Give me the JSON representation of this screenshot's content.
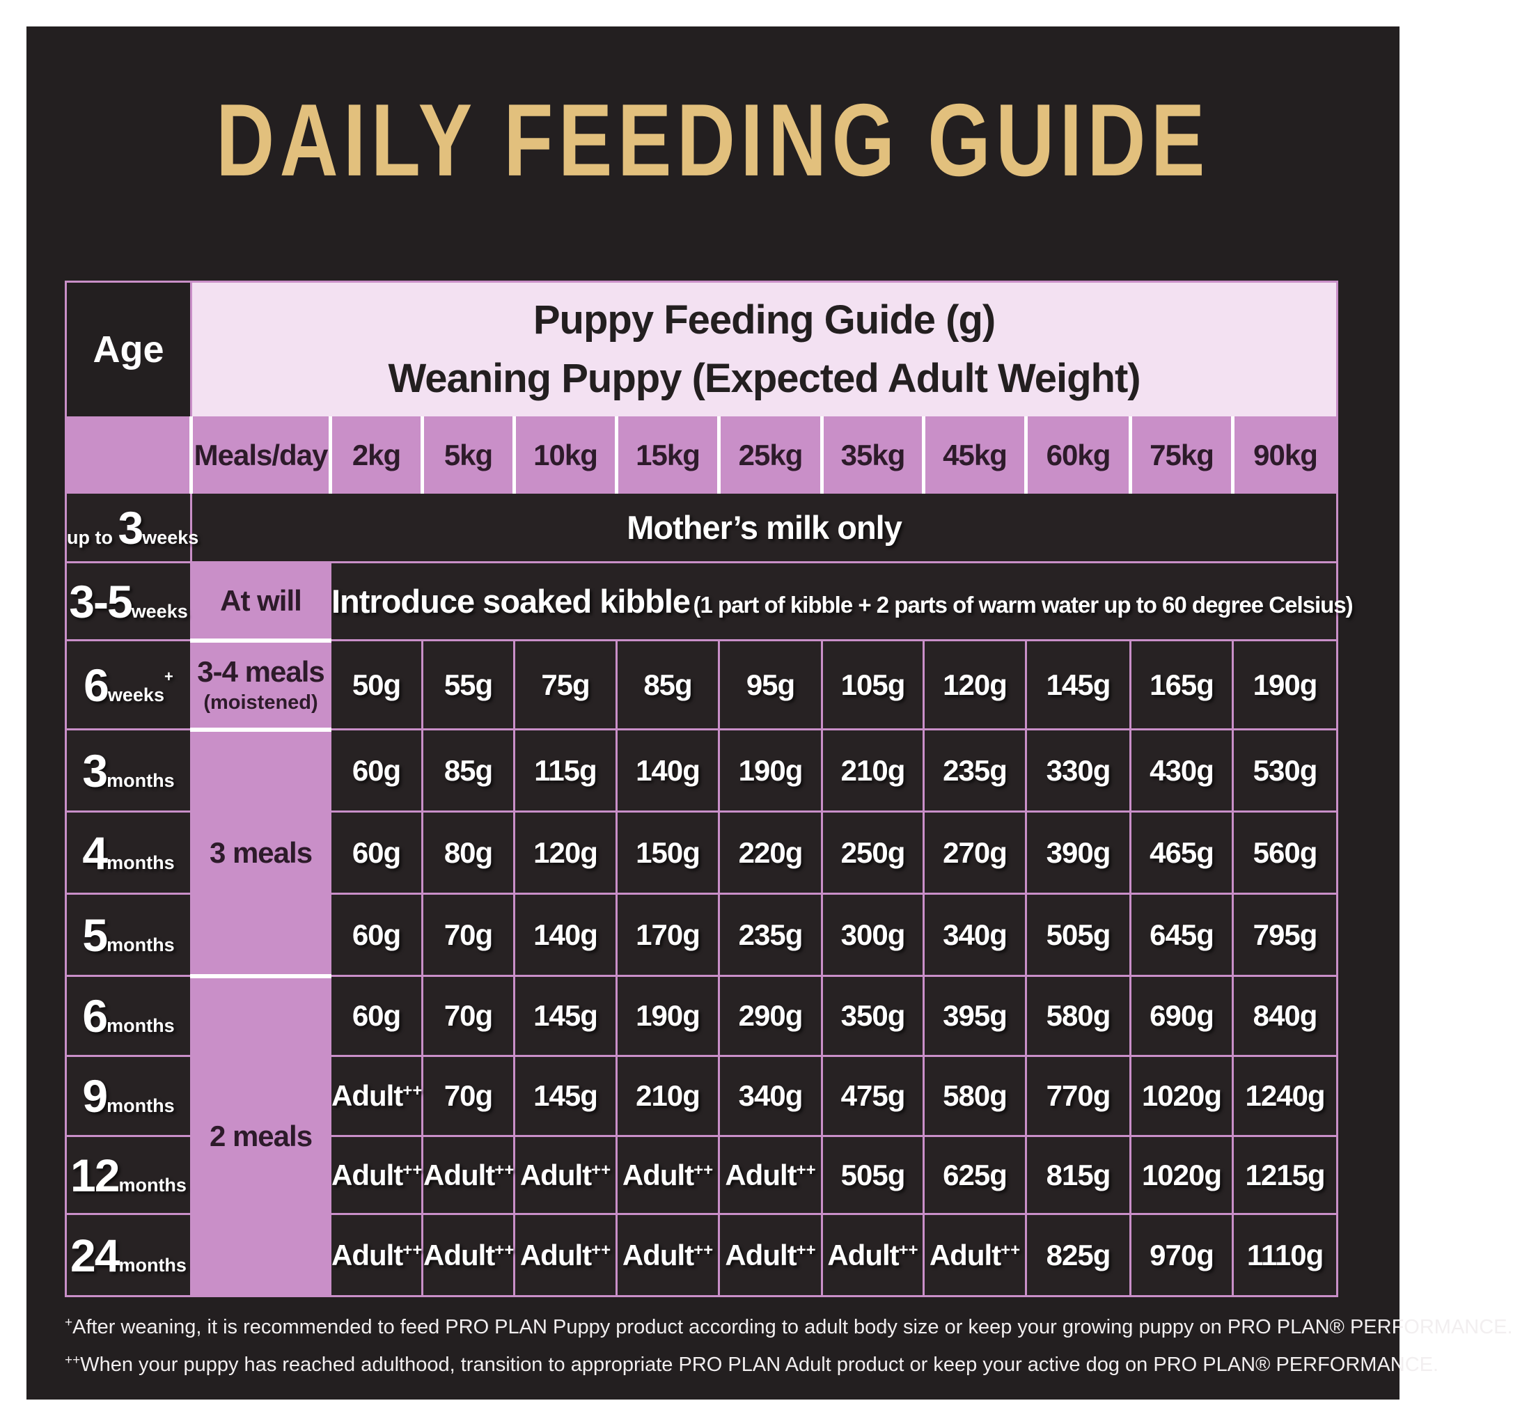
{
  "title": "DAILY FEEDING GUIDE",
  "colors": {
    "page_bg": "#ffffff",
    "panel": "#231f20",
    "gold": "#e2c07d",
    "light_pink": "#f3e1f2",
    "pink": "#c98fc8",
    "cell_dark": "#272223",
    "text_light": "#ffffff",
    "text_dark": "#2d1b2a"
  },
  "table": {
    "age_header": "Age",
    "main_header_line1": "Puppy Feeding Guide (g)",
    "main_header_line2": "Weaning Puppy (Expected Adult Weight)",
    "col_headers": [
      "Meals/day",
      "2kg",
      "5kg",
      "10kg",
      "15kg",
      "25kg",
      "35kg",
      "45kg",
      "60kg",
      "75kg",
      "90kg"
    ],
    "rows": [
      {
        "age": {
          "prefix": "up to",
          "big": "3",
          "suffix": "weeks"
        },
        "span_cols": 11,
        "span_text": {
          "main": "Mother’s milk only"
        }
      },
      {
        "age": {
          "big": "3-5",
          "suffix": "weeks"
        },
        "meals": {
          "label": "At will",
          "rowspan": 1
        },
        "span_cols": 10,
        "span_text": {
          "main": "Introduce soaked kibble",
          "note": "(1 part of kibble + 2 parts of warm water up to 60 degree Celsius)"
        }
      },
      {
        "age": {
          "big": "6",
          "suffix": "weeks",
          "sup": "+"
        },
        "meals": {
          "label": "3-4 meals",
          "sub": "(moistened)",
          "rowspan": 1
        },
        "values": [
          "50g",
          "55g",
          "75g",
          "85g",
          "95g",
          "105g",
          "120g",
          "145g",
          "165g",
          "190g"
        ]
      },
      {
        "age": {
          "big": "3",
          "suffix": "months"
        },
        "meals": {
          "label": "3 meals",
          "rowspan": 3
        },
        "values": [
          "60g",
          "85g",
          "115g",
          "140g",
          "190g",
          "210g",
          "235g",
          "330g",
          "430g",
          "530g"
        ]
      },
      {
        "age": {
          "big": "4",
          "suffix": "months"
        },
        "values": [
          "60g",
          "80g",
          "120g",
          "150g",
          "220g",
          "250g",
          "270g",
          "390g",
          "465g",
          "560g"
        ]
      },
      {
        "age": {
          "big": "5",
          "suffix": "months"
        },
        "values": [
          "60g",
          "70g",
          "140g",
          "170g",
          "235g",
          "300g",
          "340g",
          "505g",
          "645g",
          "795g"
        ]
      },
      {
        "age": {
          "big": "6",
          "suffix": "months"
        },
        "meals": {
          "label": "2 meals",
          "rowspan": 4
        },
        "values": [
          "60g",
          "70g",
          "145g",
          "190g",
          "290g",
          "350g",
          "395g",
          "580g",
          "690g",
          "840g"
        ]
      },
      {
        "age": {
          "big": "9",
          "suffix": "months"
        },
        "values": [
          "Adult++",
          "70g",
          "145g",
          "210g",
          "340g",
          "475g",
          "580g",
          "770g",
          "1020g",
          "1240g"
        ]
      },
      {
        "age": {
          "big": "12",
          "suffix": "months"
        },
        "values": [
          "Adult++",
          "Adult++",
          "Adult++",
          "Adult++",
          "Adult++",
          "505g",
          "625g",
          "815g",
          "1020g",
          "1215g"
        ]
      },
      {
        "age": {
          "big": "24",
          "suffix": "months"
        },
        "values": [
          "Adult++",
          "Adult++",
          "Adult++",
          "Adult++",
          "Adult++",
          "Adult++",
          "Adult++",
          "825g",
          "970g",
          "1110g"
        ]
      }
    ]
  },
  "footnotes": [
    {
      "sup": "+",
      "text": "After weaning, it is recommended to feed PRO PLAN Puppy product according to adult body size or keep your growing puppy on PRO PLAN® PERFORMANCE."
    },
    {
      "sup": "++",
      "text": "When your puppy has reached adulthood, transition to appropriate PRO PLAN Adult product or keep your active dog on PRO PLAN® PERFORMANCE."
    }
  ]
}
